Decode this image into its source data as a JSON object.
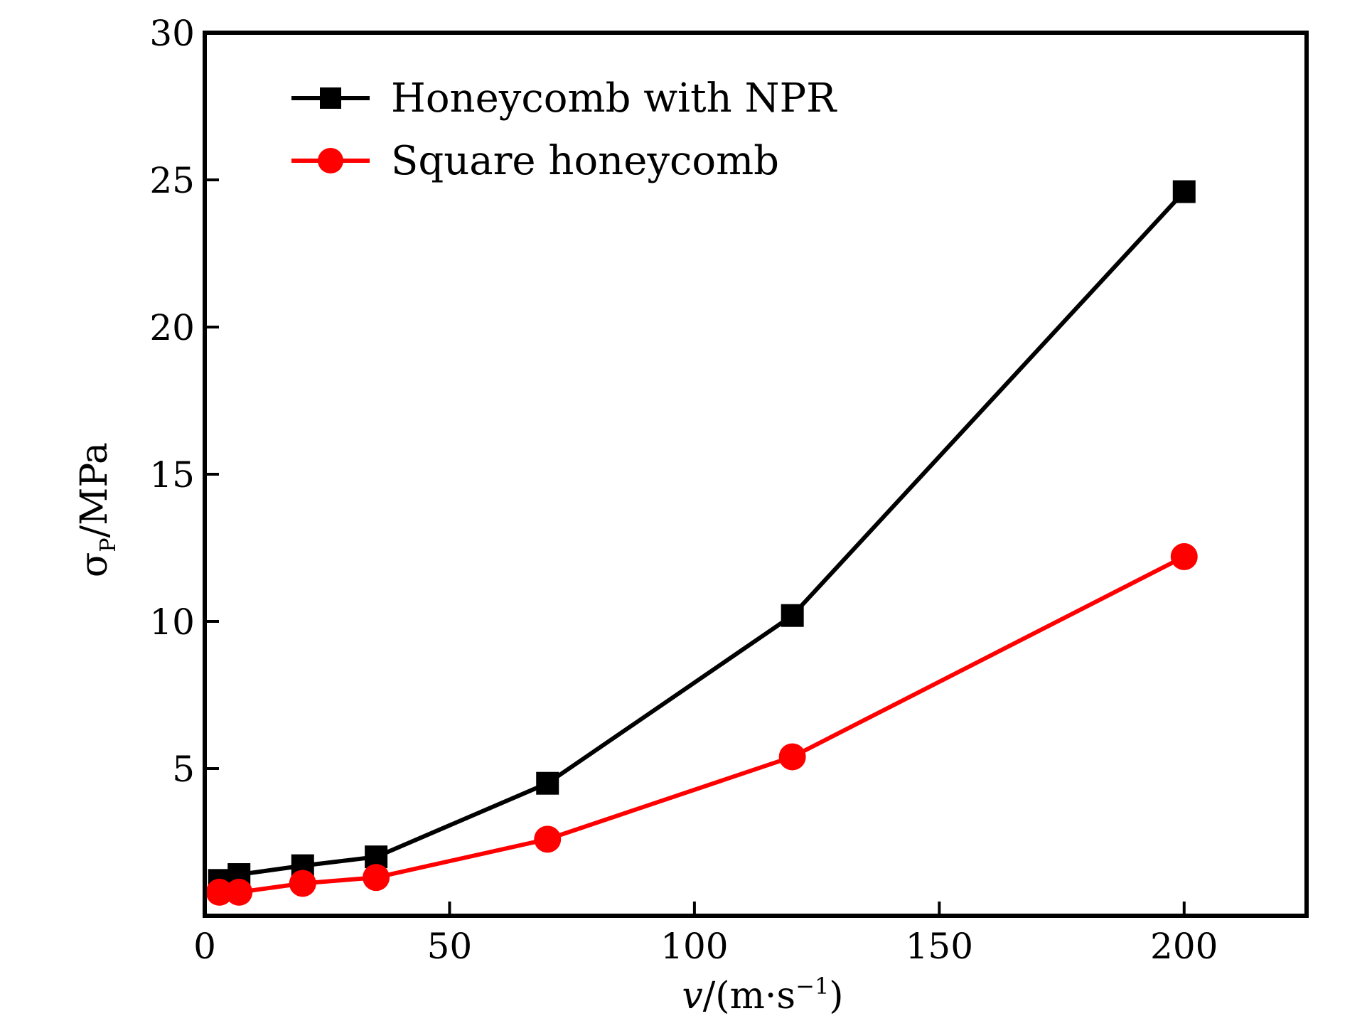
{
  "chart_data": {
    "type": "line",
    "xlabel_var": "v",
    "xlabel_unit_open": "/(m·s",
    "xlabel_unit_sup": "−1",
    "xlabel_unit_close": ")",
    "ylabel_main": "σ",
    "ylabel_sub": "P",
    "ylabel_unit": "/MPa",
    "xlim": [
      0,
      225
    ],
    "ylim": [
      0,
      30
    ],
    "xticks": [
      0,
      50,
      100,
      150,
      200
    ],
    "yticks": [
      5,
      10,
      15,
      20,
      25,
      30
    ],
    "legend_position": "top-left",
    "grid": false,
    "series": [
      {
        "name": "Honeycomb with NPR",
        "color": "#000000",
        "marker": "square",
        "x": [
          3,
          7,
          20,
          35,
          70,
          120,
          200
        ],
        "y": [
          1.2,
          1.4,
          1.7,
          2.0,
          4.5,
          10.2,
          24.6
        ]
      },
      {
        "name": "Square honeycomb",
        "color": "#ff0000",
        "marker": "circle",
        "x": [
          3,
          7,
          20,
          35,
          70,
          120,
          200
        ],
        "y": [
          0.8,
          0.8,
          1.1,
          1.3,
          2.6,
          5.4,
          12.2
        ]
      }
    ]
  }
}
